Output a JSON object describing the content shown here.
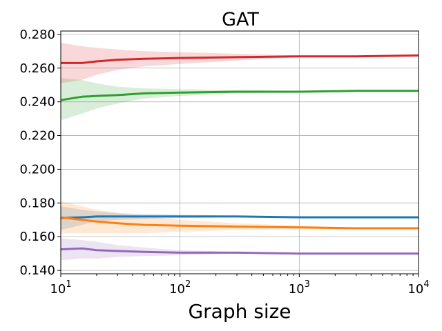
{
  "chart_data": {
    "type": "line",
    "title": "GAT",
    "xlabel": "Graph size",
    "ylabel": "",
    "xscale": "log",
    "xlim_exp": [
      1,
      4
    ],
    "ylim": [
      0.138,
      0.282
    ],
    "grid": true,
    "legend": "none",
    "x_ticks": [
      {
        "exp": 1,
        "base": "10",
        "sup": "1"
      },
      {
        "exp": 2,
        "base": "10",
        "sup": "2"
      },
      {
        "exp": 3,
        "base": "10",
        "sup": "3"
      },
      {
        "exp": 4,
        "base": "10",
        "sup": "4"
      }
    ],
    "y_ticks": [
      {
        "value": 0.14,
        "label": "0.140"
      },
      {
        "value": 0.16,
        "label": "0.160"
      },
      {
        "value": 0.18,
        "label": "0.180"
      },
      {
        "value": 0.2,
        "label": "0.200"
      },
      {
        "value": 0.22,
        "label": "0.220"
      },
      {
        "value": 0.24,
        "label": "0.240"
      },
      {
        "value": 0.26,
        "label": "0.260"
      },
      {
        "value": 0.28,
        "label": "0.280"
      }
    ],
    "x": [
      10,
      15,
      20,
      30,
      50,
      100,
      300,
      1000,
      3000,
      10000
    ],
    "series": [
      {
        "name": "red",
        "color": "#d62728",
        "values": [
          0.263,
          0.263,
          0.264,
          0.265,
          0.2655,
          0.266,
          0.2665,
          0.267,
          0.267,
          0.2675
        ],
        "upper": [
          0.275,
          0.273,
          0.272,
          0.271,
          0.27,
          0.2695,
          0.2685,
          0.2675,
          0.2672,
          0.2675
        ],
        "lower": [
          0.251,
          0.253,
          0.256,
          0.259,
          0.261,
          0.2625,
          0.2645,
          0.2665,
          0.2668,
          0.2675
        ]
      },
      {
        "name": "green",
        "color": "#2ca02c",
        "values": [
          0.241,
          0.243,
          0.2435,
          0.244,
          0.245,
          0.2455,
          0.246,
          0.246,
          0.2465,
          0.2465
        ],
        "upper": [
          0.254,
          0.253,
          0.251,
          0.249,
          0.248,
          0.2475,
          0.247,
          0.2465,
          0.2465,
          0.2465
        ],
        "lower": [
          0.229,
          0.233,
          0.236,
          0.239,
          0.242,
          0.2435,
          0.245,
          0.2455,
          0.2465,
          0.2465
        ]
      },
      {
        "name": "blue",
        "color": "#1f77b4",
        "values": [
          0.171,
          0.1715,
          0.172,
          0.172,
          0.172,
          0.172,
          0.172,
          0.1715,
          0.1715,
          0.1715
        ],
        "upper": [
          0.178,
          0.176,
          0.175,
          0.174,
          0.1735,
          0.173,
          0.1725,
          0.172,
          0.1715,
          0.1715
        ],
        "lower": [
          0.164,
          0.167,
          0.169,
          0.17,
          0.1705,
          0.171,
          0.1715,
          0.171,
          0.1715,
          0.1715
        ]
      },
      {
        "name": "orange",
        "color": "#ff7f0e",
        "values": [
          0.1715,
          0.17,
          0.169,
          0.168,
          0.167,
          0.1665,
          0.166,
          0.1655,
          0.165,
          0.165
        ],
        "upper": [
          0.181,
          0.178,
          0.176,
          0.174,
          0.172,
          0.17,
          0.168,
          0.1665,
          0.1655,
          0.165
        ],
        "lower": [
          0.162,
          0.162,
          0.162,
          0.162,
          0.162,
          0.163,
          0.164,
          0.1645,
          0.1645,
          0.165
        ]
      },
      {
        "name": "purple",
        "color": "#9467bd",
        "values": [
          0.1525,
          0.153,
          0.152,
          0.1515,
          0.151,
          0.1505,
          0.1505,
          0.15,
          0.15,
          0.15
        ],
        "upper": [
          0.159,
          0.158,
          0.157,
          0.155,
          0.1535,
          0.152,
          0.151,
          0.1505,
          0.15,
          0.15
        ],
        "lower": [
          0.146,
          0.147,
          0.147,
          0.148,
          0.1485,
          0.149,
          0.15,
          0.1495,
          0.15,
          0.15
        ]
      }
    ]
  }
}
